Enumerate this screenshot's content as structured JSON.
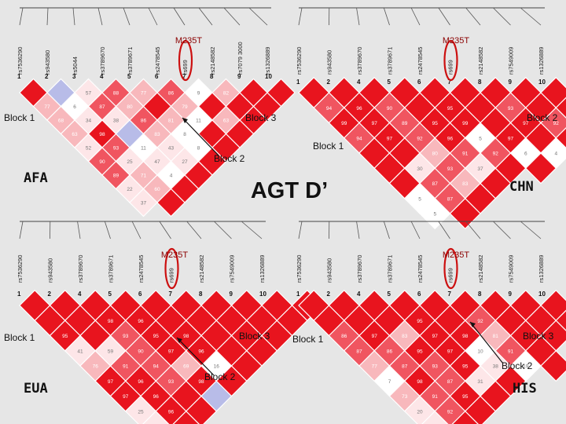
{
  "title": "AGT D’",
  "colors": {
    "strong": "#e8141e",
    "mid": "#f05560",
    "light": "#f8b8bc",
    "pale": "#fde6e8",
    "none": "#ffffff",
    "blue": "#b8bce8",
    "circle": "#cc1010"
  },
  "panels": [
    {
      "name": "AFA",
      "snps": [
        "rs7536290",
        "rs943580",
        "rs5044",
        "rs3789670",
        "rs3789671",
        "rs2478545",
        "rs699",
        "rs2148582",
        "rs7079 3000",
        "rs1326889"
      ],
      "indices": [
        "1",
        "2",
        "3",
        "4",
        "5",
        "6",
        "7",
        "8",
        "9",
        "10"
      ],
      "mutation": "M235T",
      "circled": 7,
      "blocks": [
        "Block 1",
        "Block 2",
        "Block 3"
      ],
      "cells": [
        [
          "",
          "",
          "57",
          "88",
          "77",
          "86",
          "9",
          "82",
          "",
          "",
          "",
          "",
          "",
          "",
          "",
          "",
          "",
          "",
          "",
          "",
          "",
          "",
          "",
          "",
          "",
          "",
          "",
          "",
          "",
          "",
          "",
          "",
          "",
          "",
          "",
          "",
          "",
          "",
          "",
          "",
          "",
          "",
          "",
          "",
          ""
        ],
        []
      ]
    }
  ],
  "panel_cells": {
    "AFA": [
      [
        "",
        "",
        "57",
        "88",
        "77",
        "86",
        "9",
        "82",
        "",
        ""
      ],
      [
        "77",
        "6",
        "87",
        "80",
        "",
        "79",
        "",
        "",
        ""
      ],
      [
        "68",
        "34",
        "38",
        "86",
        "81",
        "11",
        "63",
        ""
      ],
      [
        "63",
        "98",
        "",
        "83",
        "8",
        "",
        ""
      ],
      [
        "52",
        "93",
        "11",
        "43",
        "8",
        ""
      ],
      [
        "90",
        "25",
        "47",
        "27",
        ""
      ],
      [
        "89",
        "71",
        "4",
        ""
      ],
      [
        "22",
        "60",
        ""
      ],
      [
        "37",
        ""
      ]
    ],
    "CHN": [
      [
        "",
        "",
        "",
        "",
        "",
        "",
        "",
        "",
        "",
        ""
      ],
      [
        "94",
        "96",
        "90",
        "",
        "95",
        "",
        "93",
        "",
        ""
      ],
      [
        "99",
        "97",
        "89",
        "95",
        "99",
        "",
        "97",
        "92"
      ],
      [
        "94",
        "97",
        "92",
        "96",
        "5",
        "97",
        "",
        ""
      ],
      [
        "",
        "",
        "80",
        "91",
        "92",
        "6",
        "4",
        ""
      ],
      [
        "",
        "30",
        "93",
        "37",
        "",
        ""
      ],
      [
        "",
        "87",
        "83",
        ""
      ],
      [
        "5",
        "87",
        ""
      ],
      [
        "5",
        ""
      ]
    ],
    "EUA": [
      [
        "",
        "",
        "",
        "",
        "",
        "",
        "",
        "",
        "",
        ""
      ],
      [
        "",
        "",
        "98",
        "96",
        "",
        "",
        "",
        "",
        ""
      ],
      [
        "95",
        "",
        "93",
        "95",
        "98",
        "",
        "",
        ""
      ],
      [
        "41",
        "59",
        "90",
        "97",
        "96",
        "",
        ""
      ],
      [
        "76",
        "91",
        "94",
        "69",
        "16",
        ""
      ],
      [
        "97",
        "96",
        "93",
        "98",
        ""
      ],
      [
        "97",
        "96",
        "",
        ""
      ],
      [
        "25",
        "96",
        ""
      ],
      [
        "23",
        ""
      ]
    ],
    "HIS": [
      [
        "",
        "",
        "",
        "",
        "",
        "",
        "",
        "",
        "",
        ""
      ],
      [
        "",
        "",
        "",
        "95",
        "",
        "92",
        "",
        "",
        ""
      ],
      [
        "86",
        "97",
        "83",
        "97",
        "98",
        "81",
        "",
        ""
      ],
      [
        "87",
        "86",
        "95",
        "97",
        "10",
        "91",
        ""
      ],
      [
        "77",
        "87",
        "93",
        "95",
        "38",
        "19",
        ""
      ],
      [
        "7",
        "98",
        "87",
        "31",
        ""
      ],
      [
        "73",
        "91",
        "95",
        ""
      ],
      [
        "20",
        "92",
        ""
      ],
      [
        "25",
        ""
      ]
    ]
  },
  "panel_meta": {
    "AFA": {
      "label": "AFA",
      "snps": [
        "rs7536290",
        "rs943580",
        "rs5044",
        "rs3789670",
        "rs3789671",
        "rs2478545",
        "rs699",
        "rs2148582",
        "rs7079 3000",
        "rs1326889"
      ],
      "indices": [
        "1",
        "2",
        "3",
        "4",
        "5",
        "6",
        "7",
        "8",
        "9",
        "10"
      ],
      "mutation": "M235T",
      "block1": "Block 1",
      "block2": "Block 2",
      "block3": "Block 3"
    },
    "CHN": {
      "label": "CHN",
      "snps": [
        "rs7536290",
        "rs943580",
        "rs3789670",
        "rs3789671",
        "rs2478545",
        "rs699",
        "rs2148582",
        "rs7549009",
        "rs1326889"
      ],
      "indices": [
        "1",
        "2",
        "4",
        "5",
        "6",
        "7",
        "8",
        "9",
        "10"
      ],
      "mutation": "M235T",
      "block1": "Block 1",
      "block2": "Block 2"
    },
    "EUA": {
      "label": "EUA",
      "snps": [
        "rs7536290",
        "rs943580",
        "rs3789670",
        "rs3789671",
        "rs2478545",
        "rs699",
        "rs2148582",
        "rs7549009",
        "rs1326889"
      ],
      "indices": [
        "1",
        "2",
        "4",
        "5",
        "6",
        "7",
        "8",
        "9",
        "10"
      ],
      "mutation": "M235T",
      "block1": "Block 1",
      "block2": "Block 2",
      "block3": "Block 3"
    },
    "HIS": {
      "label": "HIS",
      "snps": [
        "rs7536290",
        "rs943580",
        "rs3789670",
        "rs3789671",
        "rs2478545",
        "rs699",
        "rs2148582",
        "rs7549009",
        "rs1326889"
      ],
      "indices": [
        "1",
        "2",
        "4",
        "5",
        "6",
        "7",
        "8",
        "9",
        "10"
      ],
      "mutation": "M235T",
      "block1": "Block 1",
      "block2": "Block 2",
      "block3": "Block 3"
    }
  }
}
